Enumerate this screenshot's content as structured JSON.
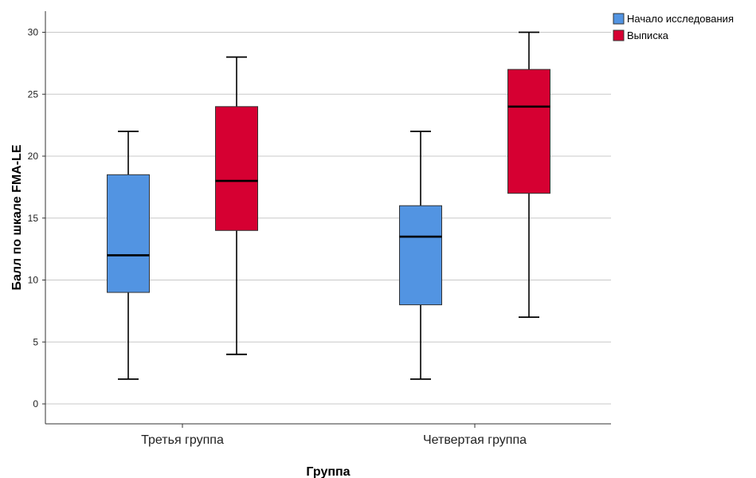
{
  "chart_data": {
    "type": "boxplot",
    "title": "",
    "xlabel": "Группа",
    "ylabel": "Балл по шкале FMA-LE",
    "categories": [
      "Третья группа",
      "Четвертая группа"
    ],
    "ylim": [
      -1.5,
      32
    ],
    "yticks": [
      0,
      5,
      10,
      15,
      20,
      25,
      30
    ],
    "grid": true,
    "legend_position": "top-right",
    "series": [
      {
        "name": "Начало исследования",
        "color": "#5294E2",
        "boxes": [
          {
            "min": 2,
            "q1": 9,
            "median": 12,
            "q3": 18.5,
            "max": 22
          },
          {
            "min": 2,
            "q1": 8,
            "median": 13.5,
            "q3": 16,
            "max": 22
          }
        ]
      },
      {
        "name": "Выписка",
        "color": "#D60032",
        "boxes": [
          {
            "min": 4,
            "q1": 14,
            "median": 18,
            "q3": 24,
            "max": 28
          },
          {
            "min": 7,
            "q1": 17,
            "median": 24,
            "q3": 27,
            "max": 30
          }
        ]
      }
    ]
  }
}
